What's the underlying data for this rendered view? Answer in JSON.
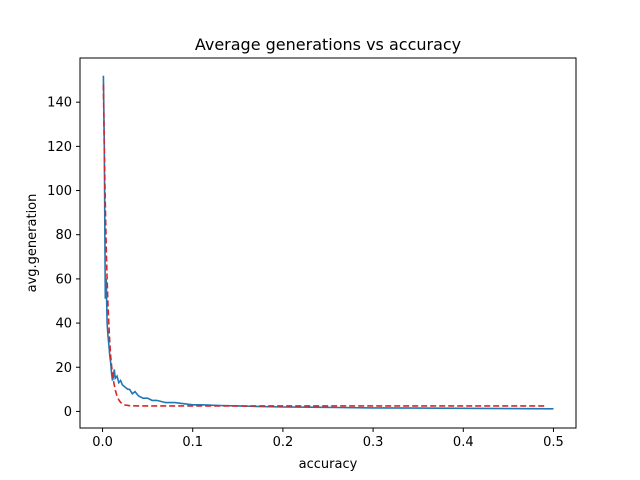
{
  "chart_data": {
    "type": "line",
    "title": "Average generations vs accuracy",
    "xlabel": "accuracy",
    "ylabel": "avg.generation",
    "xlim": [
      -0.025,
      0.525
    ],
    "ylim": [
      -7.5,
      160
    ],
    "grid": false,
    "legend": "none",
    "x_ticks": [
      0.0,
      0.1,
      0.2,
      0.3,
      0.4,
      0.5
    ],
    "x_tick_labels": [
      "0.0",
      "0.1",
      "0.2",
      "0.3",
      "0.4",
      "0.5"
    ],
    "y_ticks": [
      0,
      20,
      40,
      60,
      80,
      100,
      120,
      140
    ],
    "y_tick_labels": [
      "0",
      "20",
      "40",
      "60",
      "80",
      "100",
      "120",
      "140"
    ],
    "series": [
      {
        "style": "solid",
        "color": "#1f77b4",
        "x": [
          0.001,
          0.002,
          0.003,
          0.004,
          0.005,
          0.006,
          0.007,
          0.008,
          0.009,
          0.01,
          0.011,
          0.012,
          0.013,
          0.014,
          0.016,
          0.018,
          0.02,
          0.022,
          0.025,
          0.028,
          0.03,
          0.033,
          0.036,
          0.04,
          0.045,
          0.05,
          0.055,
          0.06,
          0.07,
          0.08,
          0.09,
          0.1,
          0.11,
          0.12,
          0.13,
          0.15,
          0.17,
          0.2,
          0.23,
          0.26,
          0.3,
          0.35,
          0.4,
          0.45,
          0.5
        ],
        "y": [
          152,
          120,
          51,
          60,
          40,
          34,
          30,
          25,
          22,
          17,
          14,
          16,
          19,
          15,
          16,
          13,
          14,
          12,
          11,
          10,
          10,
          8,
          9,
          7,
          6,
          6,
          5,
          5,
          4,
          4,
          3.5,
          3,
          3,
          2.8,
          2.7,
          2.5,
          2.3,
          2.0,
          1.9,
          1.8,
          1.6,
          1.5,
          1.4,
          1.3,
          1.2
        ]
      },
      {
        "style": "dashed",
        "color": "#d62728",
        "x": [
          0.001,
          0.002,
          0.003,
          0.004,
          0.005,
          0.006,
          0.007,
          0.008,
          0.009,
          0.01,
          0.012,
          0.014,
          0.016,
          0.018,
          0.02,
          0.022,
          0.025,
          0.03,
          0.04,
          0.05,
          0.1,
          0.2,
          0.3,
          0.4,
          0.49
        ],
        "y": [
          148,
          118,
          94,
          75,
          60,
          48,
          39,
          31,
          25,
          20.5,
          14,
          9.8,
          7,
          5.2,
          4.1,
          3.4,
          2.9,
          2.6,
          2.5,
          2.5,
          2.5,
          2.5,
          2.5,
          2.5,
          2.5
        ]
      }
    ]
  }
}
